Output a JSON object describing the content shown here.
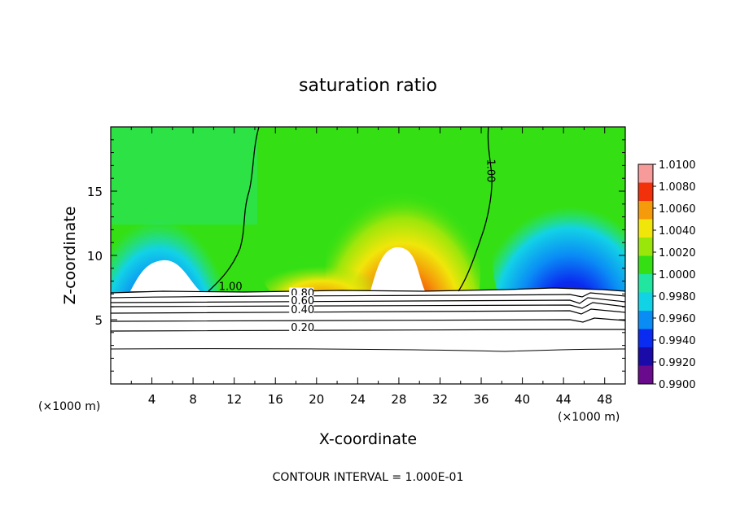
{
  "chart_data": {
    "type": "heatmap",
    "title": "saturation ratio",
    "xlabel": "X-coordinate",
    "ylabel": "Z-coordinate",
    "x_unit_left": "(×1000 m)",
    "x_unit_right": "(×1000 m)",
    "xlim": [
      0,
      50
    ],
    "ylim": [
      0,
      20
    ],
    "x_ticks": [
      4,
      8,
      12,
      16,
      20,
      24,
      28,
      32,
      36,
      40,
      44,
      48
    ],
    "y_ticks": [
      5,
      10,
      15
    ],
    "footer": "CONTOUR INTERVAL = 1.000E-01",
    "colorbar": {
      "levels": [
        0.99,
        0.992,
        0.994,
        0.996,
        0.998,
        1.0,
        1.002,
        1.004,
        1.006,
        1.008,
        1.01
      ],
      "labels": [
        "0.9900",
        "0.9920",
        "0.9940",
        "0.9960",
        "0.9980",
        "1.0000",
        "1.0020",
        "1.0040",
        "1.0060",
        "1.0080",
        "1.0100"
      ],
      "colors": [
        "#6a0a8c",
        "#1a0aa8",
        "#0a2cf0",
        "#0a8cf5",
        "#12d2e6",
        "#20e6a0",
        "#34e014",
        "#9be60a",
        "#f0e60a",
        "#f59a0a",
        "#f2300a",
        "#f79a9a"
      ]
    },
    "contour_labels": [
      {
        "text": "1.00",
        "x": 10.5,
        "y": 7.3
      },
      {
        "text": "1.00",
        "x": 36.6,
        "y": 17.5
      },
      {
        "text": "0.80",
        "x": 17.5,
        "y": 6.8
      },
      {
        "text": "0.60",
        "x": 17.5,
        "y": 6.2
      },
      {
        "text": "0.40",
        "x": 17.5,
        "y": 5.5
      },
      {
        "text": "0.20",
        "x": 17.5,
        "y": 4.1
      }
    ],
    "contour_levels_below": [
      0.2,
      0.4,
      0.6,
      0.8
    ],
    "contour_level_one": 1.0
  }
}
